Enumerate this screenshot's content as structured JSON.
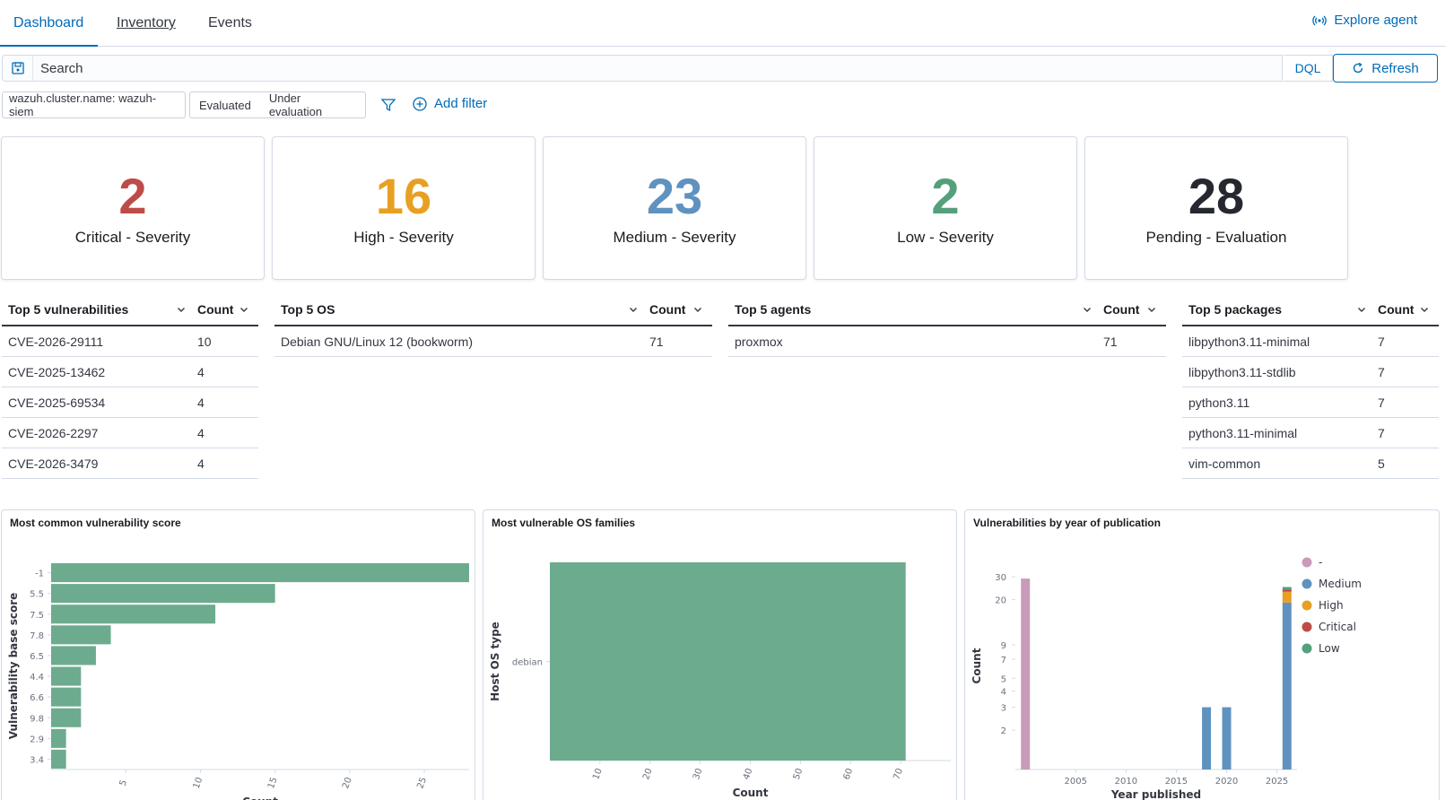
{
  "nav": {
    "tabs": [
      "Dashboard",
      "Inventory",
      "Events"
    ],
    "explore": "Explore agent"
  },
  "search": {
    "placeholder": "Search",
    "dql": "DQL",
    "refresh": "Refresh"
  },
  "filters": {
    "cluster": "wazuh.cluster.name: wazuh-siem",
    "evaluated": "Evaluated",
    "under_evaluation": "Under evaluation",
    "add_filter": "Add filter"
  },
  "stats": [
    {
      "value": "2",
      "label": "Critical - Severity",
      "color": "#bd4c48"
    },
    {
      "value": "16",
      "label": "High - Severity",
      "color": "#e7a023"
    },
    {
      "value": "23",
      "label": "Medium - Severity",
      "color": "#6092c0"
    },
    {
      "value": "2",
      "label": "Low - Severity",
      "color": "#54a07d"
    },
    {
      "value": "28",
      "label": "Pending - Evaluation",
      "color": "#25282f"
    }
  ],
  "tables": {
    "vulns": {
      "header": "Top 5 vulnerabilities",
      "count": "Count",
      "rows": [
        [
          "CVE-2026-29111",
          "10"
        ],
        [
          "CVE-2025-13462",
          "4"
        ],
        [
          "CVE-2025-69534",
          "4"
        ],
        [
          "CVE-2026-2297",
          "4"
        ],
        [
          "CVE-2026-3479",
          "4"
        ]
      ]
    },
    "os": {
      "header": "Top 5 OS",
      "count": "Count",
      "rows": [
        [
          "Debian GNU/Linux 12 (bookworm)",
          "71"
        ]
      ]
    },
    "agents": {
      "header": "Top 5 agents",
      "count": "Count",
      "rows": [
        [
          "proxmox",
          "71"
        ]
      ]
    },
    "packages": {
      "header": "Top 5 packages",
      "count": "Count",
      "rows": [
        [
          "libpython3.11-minimal",
          "7"
        ],
        [
          "libpython3.11-stdlib",
          "7"
        ],
        [
          "python3.11",
          "7"
        ],
        [
          "python3.11-minimal",
          "7"
        ],
        [
          "vim-common",
          "5"
        ]
      ]
    }
  },
  "chart_data": [
    {
      "type": "bar",
      "orientation": "horizontal",
      "title": "Most common vulnerability score",
      "xlabel": "Count",
      "ylabel": "Vulnerability base score",
      "categories": [
        "-1",
        "5.5",
        "7.5",
        "7.8",
        "6.5",
        "4.4",
        "6.6",
        "9.8",
        "2.9",
        "3.4"
      ],
      "values": [
        28,
        15,
        11,
        4,
        3,
        2,
        2,
        2,
        1,
        1
      ],
      "xticks": [
        5,
        10,
        15,
        20,
        25
      ],
      "xlim": [
        0,
        28
      ],
      "color": "#6dab8f"
    },
    {
      "type": "bar",
      "orientation": "horizontal",
      "title": "Most vulnerable OS families",
      "xlabel": "Count",
      "ylabel": "Host OS type",
      "categories": [
        "debian"
      ],
      "values": [
        71
      ],
      "xticks": [
        10,
        20,
        30,
        40,
        50,
        60,
        70
      ],
      "xlim": [
        0,
        80
      ],
      "color": "#6dab8f"
    },
    {
      "type": "bar",
      "stacked": true,
      "title": "Vulnerabilities by year of publication",
      "xlabel": "Year published",
      "ylabel": "Count",
      "yscale": "log",
      "yticks": [
        2,
        3,
        4,
        5,
        7,
        9,
        20,
        30
      ],
      "xticks": [
        2005,
        2010,
        2015,
        2020,
        2025
      ],
      "xlim": [
        1999,
        2027
      ],
      "legend": [
        "-",
        "Medium",
        "High",
        "Critical",
        "Low"
      ],
      "legend_position": "right",
      "colors": {
        "-": "#ca9bb8",
        "Medium": "#6092c0",
        "High": "#e7a023",
        "Critical": "#bd4c48",
        "Low": "#54a07d"
      },
      "bars": [
        {
          "year": 2000,
          "segments": [
            {
              "series": "-",
              "value": 28
            }
          ]
        },
        {
          "year": 2018,
          "segments": [
            {
              "series": "Medium",
              "value": 2
            }
          ]
        },
        {
          "year": 2020,
          "segments": [
            {
              "series": "Medium",
              "value": 2
            }
          ]
        },
        {
          "year": 2026,
          "segments": [
            {
              "series": "Medium",
              "value": 18
            },
            {
              "series": "High",
              "value": 4
            },
            {
              "series": "Critical",
              "value": 1
            },
            {
              "series": "Low",
              "value": 1
            }
          ]
        }
      ]
    }
  ]
}
